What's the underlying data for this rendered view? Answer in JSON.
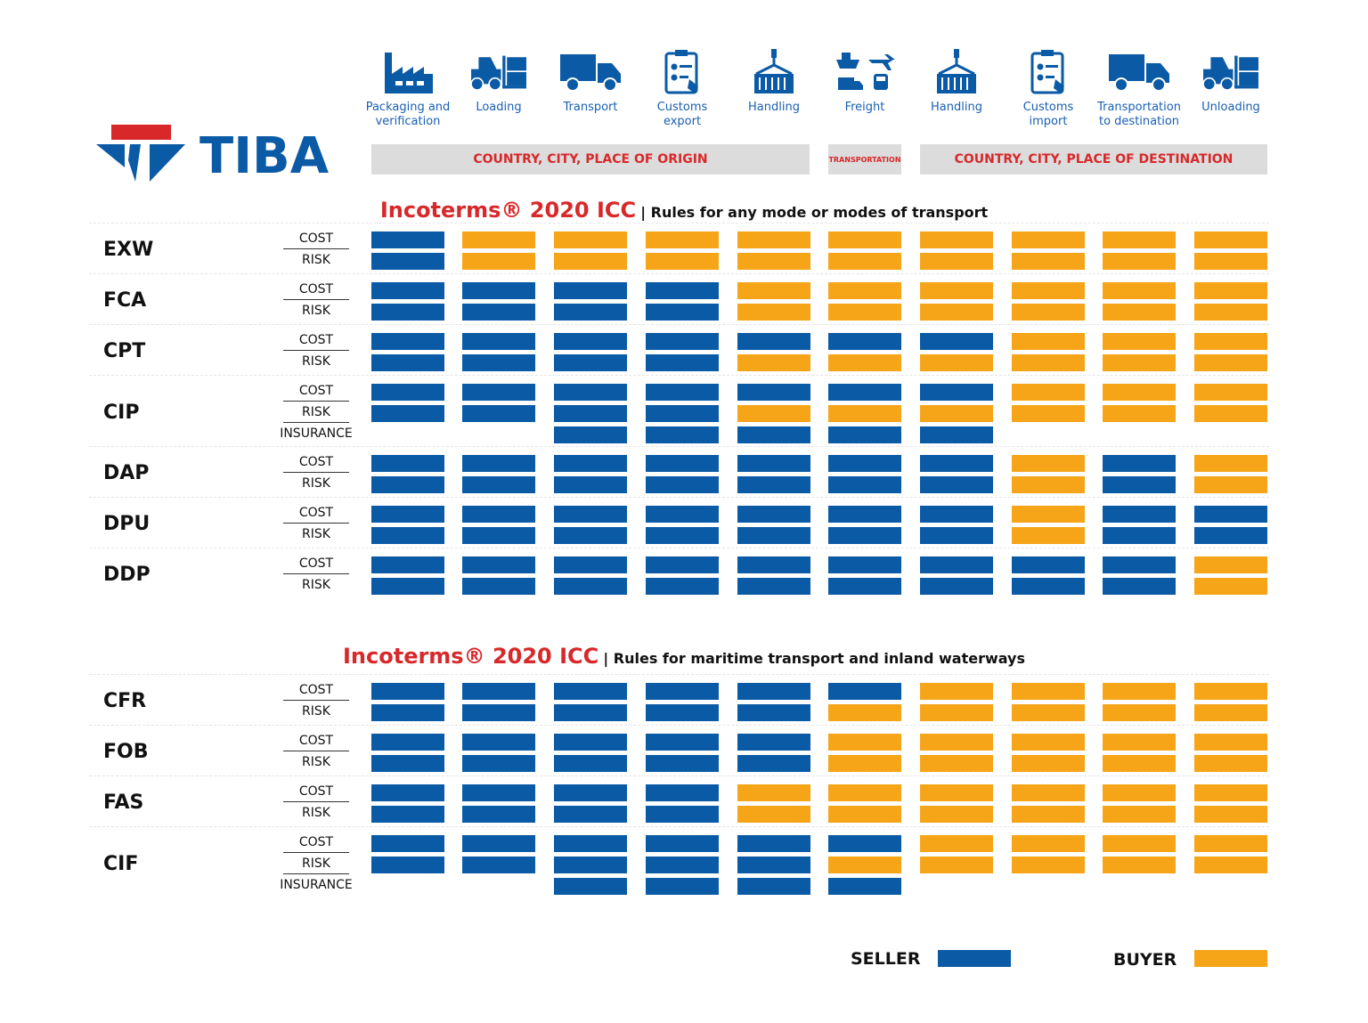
{
  "brand": {
    "name": "TIBA",
    "colors": {
      "blue": "#0b5aa6",
      "red": "#d8282a"
    }
  },
  "colors": {
    "seller": "#0b5aa6",
    "buyer": "#f5a517",
    "band": "#dcdcdc",
    "accent_text": "#d8282a"
  },
  "columns": [
    {
      "label": "Packaging and\nverification",
      "icon": "factory-icon"
    },
    {
      "label": "Loading",
      "icon": "forklift-icon"
    },
    {
      "label": "Transport",
      "icon": "truck-icon"
    },
    {
      "label": "Customs\nexport",
      "icon": "clipboard-icon"
    },
    {
      "label": "Handling",
      "icon": "crane-container-icon"
    },
    {
      "label": "Freight",
      "icon": "freight-modes-icon"
    },
    {
      "label": "Handling",
      "icon": "crane-container-icon"
    },
    {
      "label": "Customs\nimport",
      "icon": "clipboard-icon"
    },
    {
      "label": "Transportation\nto destination",
      "icon": "truck-icon"
    },
    {
      "label": "Unloading",
      "icon": "forklift-icon"
    }
  ],
  "bands": {
    "origin": "COUNTRY, CITY, PLACE OF ORIGIN",
    "transport": "TRANSPORTATION",
    "destination": "COUNTRY, CITY, PLACE OF DESTINATION"
  },
  "row_labels": {
    "cost": "COST",
    "risk": "RISK",
    "insurance": "INSURANCE"
  },
  "sections": [
    {
      "title": "Incoterms® 2020 ICC",
      "subtitle": "| Rules for any mode or modes of transport",
      "terms": [
        {
          "name": "EXW",
          "cost": "SBBBBBBBBB",
          "risk": "SBBBBBBBBB"
        },
        {
          "name": "FCA",
          "cost": "SSSSBBBBBB",
          "risk": "SSSSBBBBBB"
        },
        {
          "name": "CPT",
          "cost": "SSSSSSSBBB",
          "risk": "SSSSBBBBBB"
        },
        {
          "name": "CIP",
          "cost": "SSSSSSSBBB",
          "risk": "SSSSBBBBBB",
          "insurance": "--SSSSS---"
        },
        {
          "name": "DAP",
          "cost": "SSSSSSSBSB",
          "risk": "SSSSSSSBSB"
        },
        {
          "name": "DPU",
          "cost": "SSSSSSSBSS",
          "risk": "SSSSSSSBSS"
        },
        {
          "name": "DDP",
          "cost": "SSSSSSSSSB",
          "risk": "SSSSSSSSSB"
        }
      ]
    },
    {
      "title": "Incoterms® 2020 ICC",
      "subtitle": "| Rules for maritime transport and inland waterways",
      "terms": [
        {
          "name": "CFR",
          "cost": "SSSSSSBBBB",
          "risk": "SSSSSBBBBB"
        },
        {
          "name": "FOB",
          "cost": "SSSSSBBBBB",
          "risk": "SSSSSBBBBB"
        },
        {
          "name": "FAS",
          "cost": "SSSSBBBBBB",
          "risk": "SSSSBBBBBB"
        },
        {
          "name": "CIF",
          "cost": "SSSSSSBBBB",
          "risk": "SSSSSBBBBB",
          "insurance": "--SSSS----"
        }
      ]
    }
  ],
  "legend": {
    "seller": "SELLER",
    "buyer": "BUYER"
  }
}
